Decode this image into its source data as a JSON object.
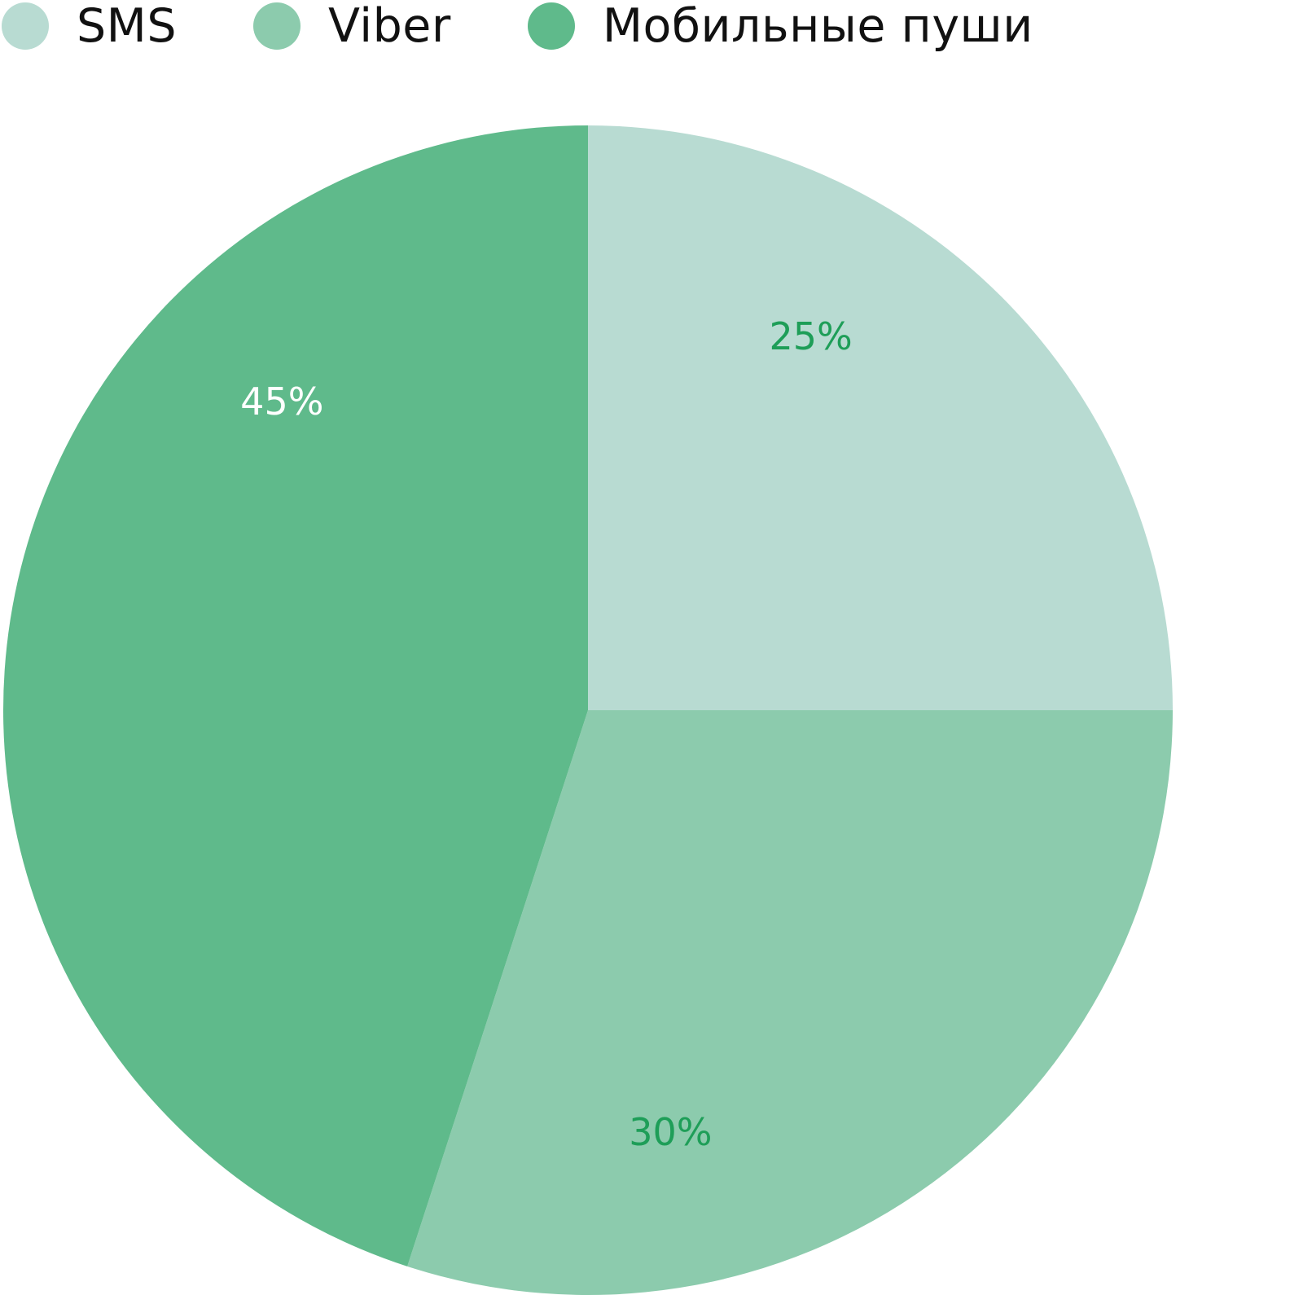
{
  "chart_data": {
    "type": "pie",
    "title": "",
    "legend_position": "top-left",
    "slices": [
      {
        "label": "SMS",
        "value": 25,
        "display": "25%",
        "color": "#b8dbd2",
        "label_color": "#1e9e58"
      },
      {
        "label": "Viber",
        "value": 30,
        "display": "30%",
        "color": "#8ccbad",
        "label_color": "#1e9e58"
      },
      {
        "label": "Мобильные пуши",
        "value": 45,
        "display": "45%",
        "color": "#5fba8b",
        "label_color": "#ffffff"
      }
    ]
  }
}
